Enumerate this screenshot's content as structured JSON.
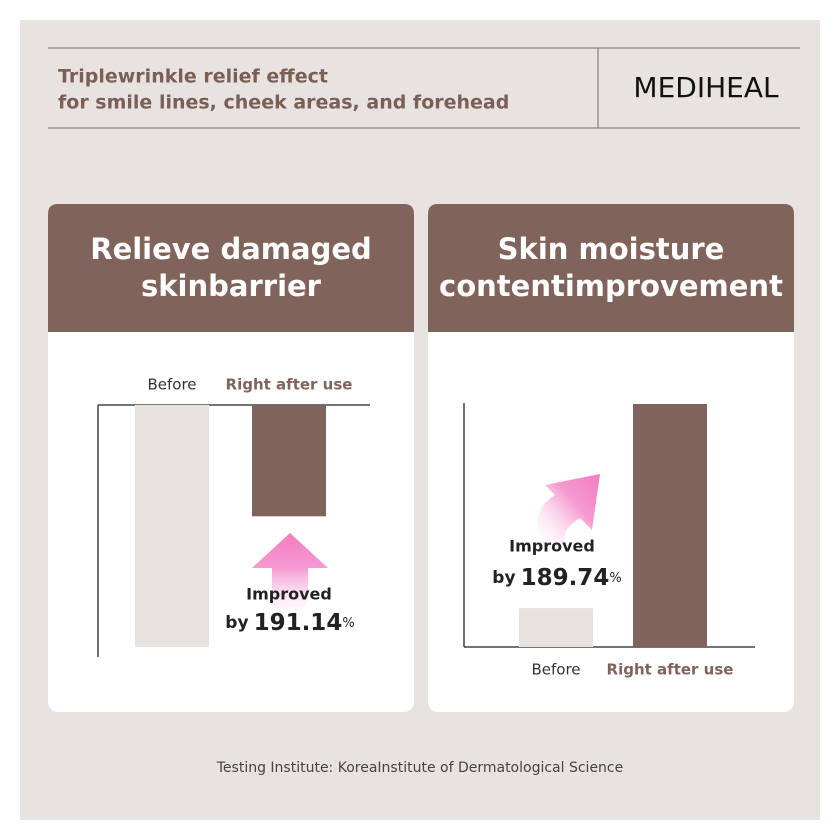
{
  "header": {
    "tagline": [
      "Triplewrinkle relief effect",
      "for smile lines, cheek areas, and forehead"
    ],
    "brand": "MEDIHEAL"
  },
  "chart_data": [
    {
      "type": "bar",
      "title": [
        "Relieve damaged",
        "skinbarrier"
      ],
      "categories": [
        "Before",
        "Right after use"
      ],
      "values": [
        100,
        46
      ],
      "colors": [
        "#e8e3df",
        "#80635a"
      ],
      "ylim": [
        0,
        100
      ],
      "y_inverted": true,
      "annotation": {
        "line1": "Improved",
        "prefix": "by",
        "number": "191.14",
        "unit": "%"
      }
    },
    {
      "type": "bar",
      "title": [
        "Skin moisture",
        "contentimprovement"
      ],
      "categories": [
        "Before",
        "Right after use"
      ],
      "values": [
        16,
        100
      ],
      "colors": [
        "#e8e3df",
        "#80635a"
      ],
      "ylim": [
        0,
        100
      ],
      "y_inverted": false,
      "annotation": {
        "line1": "Improved",
        "prefix": "by",
        "number": "189.74",
        "unit": "%"
      }
    }
  ],
  "footer": "Testing Institute: KoreaInstitute of Dermatological Science"
}
